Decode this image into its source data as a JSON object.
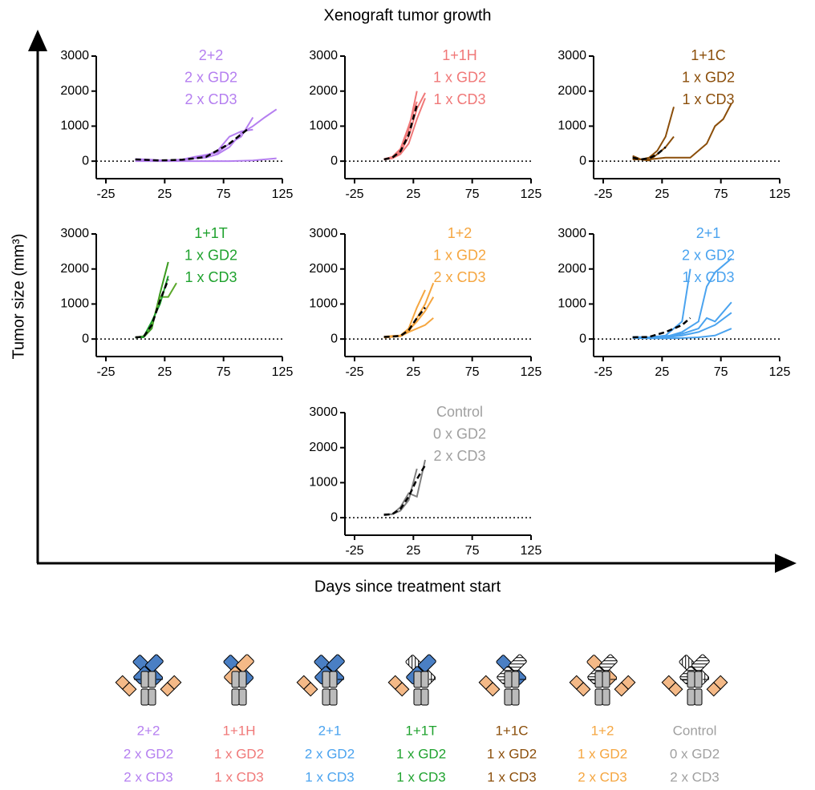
{
  "figure": {
    "title": "Xenograft tumor growth",
    "ylabel": "Tumor size (mm³)",
    "xlabel": "Days since treatment start"
  },
  "chart_data": [
    {
      "type": "line",
      "annotation": [
        "2+2",
        "2 x GD2",
        "2 x CD3"
      ],
      "color": "#b57ff0",
      "xlim": [
        -25,
        125
      ],
      "xticks": [
        -25,
        25,
        75,
        125
      ],
      "ylim": [
        -500,
        3000
      ],
      "yticks": [
        0,
        1000,
        2000,
        3000
      ],
      "zero_line": true,
      "series": [
        {
          "color": "#b57ff0",
          "x": [
            0,
            10,
            20,
            30,
            40,
            50,
            60,
            70,
            80,
            90,
            100,
            110,
            120
          ],
          "values": [
            50,
            40,
            20,
            10,
            30,
            80,
            100,
            200,
            400,
            800,
            1000,
            1250,
            1480
          ]
        },
        {
          "color": "#b57ff0",
          "x": [
            0,
            10,
            20,
            30,
            40,
            50,
            60,
            70,
            80,
            90,
            100
          ],
          "values": [
            60,
            50,
            30,
            20,
            40,
            100,
            150,
            300,
            700,
            850,
            900
          ]
        },
        {
          "color": "#b57ff0",
          "x": [
            0,
            10,
            20,
            30,
            40,
            50,
            60,
            70,
            80,
            90,
            100
          ],
          "values": [
            50,
            40,
            20,
            30,
            50,
            120,
            180,
            250,
            500,
            700,
            1250
          ]
        },
        {
          "color": "#b57ff0",
          "x": [
            0,
            20,
            40,
            60,
            80,
            100,
            120
          ],
          "values": [
            0,
            0,
            0,
            0,
            0,
            20,
            80
          ]
        },
        {
          "color": "#000000",
          "dashed": true,
          "x": [
            0,
            20,
            40,
            60,
            80,
            95
          ],
          "values": [
            50,
            20,
            40,
            120,
            500,
            900
          ]
        }
      ]
    },
    {
      "type": "line",
      "annotation": [
        "1+1H",
        "1 x GD2",
        "1 x CD3"
      ],
      "color": "#f07878",
      "xlim": [
        -25,
        125
      ],
      "xticks": [
        -25,
        25,
        75,
        125
      ],
      "ylim": [
        -500,
        3000
      ],
      "yticks": [
        0,
        1000,
        2000,
        3000
      ],
      "zero_line": true,
      "series": [
        {
          "color": "#f07878",
          "x": [
            0,
            7,
            14,
            21,
            28
          ],
          "values": [
            50,
            100,
            300,
            900,
            2000
          ]
        },
        {
          "color": "#f07878",
          "x": [
            0,
            7,
            14,
            21,
            28,
            35
          ],
          "values": [
            40,
            90,
            250,
            700,
            1500,
            1950
          ]
        },
        {
          "color": "#f07878",
          "x": [
            0,
            7,
            14,
            21,
            28,
            35
          ],
          "values": [
            50,
            80,
            200,
            500,
            1200,
            1800
          ]
        },
        {
          "color": "#f07878",
          "x": [
            0,
            7,
            14,
            21,
            28
          ],
          "values": [
            60,
            120,
            350,
            1000,
            1700
          ]
        },
        {
          "color": "#000000",
          "dashed": true,
          "x": [
            0,
            7,
            14,
            21,
            28
          ],
          "values": [
            50,
            100,
            280,
            750,
            1600
          ]
        }
      ]
    },
    {
      "type": "line",
      "annotation": [
        "1+1C",
        "1 x GD2",
        "1 x CD3"
      ],
      "color": "#8b4e0a",
      "xlim": [
        -25,
        125
      ],
      "xticks": [
        -25,
        25,
        75,
        125
      ],
      "ylim": [
        -500,
        3000
      ],
      "yticks": [
        0,
        1000,
        2000,
        3000
      ],
      "zero_line": true,
      "series": [
        {
          "color": "#8b4e0a",
          "x": [
            0,
            7,
            14,
            21,
            28,
            35
          ],
          "values": [
            150,
            50,
            100,
            300,
            700,
            1550
          ]
        },
        {
          "color": "#8b4e0a",
          "x": [
            0,
            7,
            14,
            21,
            28,
            35
          ],
          "values": [
            100,
            50,
            20,
            200,
            400,
            700
          ]
        },
        {
          "color": "#8b4e0a",
          "x": [
            0,
            14,
            28,
            42,
            49,
            56,
            63,
            70,
            77,
            84
          ],
          "values": [
            50,
            50,
            100,
            100,
            100,
            300,
            500,
            1000,
            1200,
            1650
          ]
        },
        {
          "color": "#000000",
          "dashed": true,
          "x": [
            0,
            7,
            14,
            21,
            28
          ],
          "values": [
            100,
            50,
            80,
            200,
            400
          ]
        }
      ]
    },
    {
      "type": "line",
      "annotation": [
        "1+1T",
        "1 x GD2",
        "1 x CD3"
      ],
      "color": "#1fa22e",
      "xlim": [
        -25,
        125
      ],
      "xticks": [
        -25,
        25,
        75,
        125
      ],
      "ylim": [
        -500,
        3000
      ],
      "yticks": [
        0,
        1000,
        2000,
        3000
      ],
      "zero_line": true,
      "series": [
        {
          "color": "#3a9a1e",
          "x": [
            0,
            7,
            14,
            21,
            28
          ],
          "values": [
            50,
            50,
            300,
            1300,
            2200
          ]
        },
        {
          "color": "#5aa82a",
          "x": [
            0,
            7,
            14,
            21,
            28,
            35
          ],
          "values": [
            50,
            80,
            400,
            1200,
            1200,
            1600
          ]
        },
        {
          "color": "#1fa22e",
          "x": [
            0,
            7,
            14,
            21,
            28
          ],
          "values": [
            40,
            60,
            500,
            1000,
            1800
          ]
        },
        {
          "color": "#000000",
          "dashed": true,
          "x": [
            0,
            7,
            14,
            21,
            28
          ],
          "values": [
            50,
            60,
            400,
            1100,
            1700
          ]
        }
      ]
    },
    {
      "type": "line",
      "annotation": [
        "1+2",
        "1 x GD2",
        "2 x CD3"
      ],
      "color": "#f5a640",
      "xlim": [
        -25,
        125
      ],
      "xticks": [
        -25,
        25,
        75,
        125
      ],
      "ylim": [
        -500,
        3000
      ],
      "yticks": [
        0,
        1000,
        2000,
        3000
      ],
      "zero_line": true,
      "series": [
        {
          "color": "#f5a640",
          "x": [
            0,
            7,
            14,
            21,
            28,
            35
          ],
          "values": [
            60,
            80,
            100,
            300,
            900,
            1400
          ]
        },
        {
          "color": "#f5a640",
          "x": [
            0,
            7,
            14,
            21,
            28,
            35,
            42
          ],
          "values": [
            50,
            70,
            80,
            200,
            600,
            1000,
            1600
          ]
        },
        {
          "color": "#f5a640",
          "x": [
            0,
            7,
            14,
            21,
            28,
            35,
            42
          ],
          "values": [
            70,
            90,
            100,
            250,
            500,
            800,
            1200
          ]
        },
        {
          "color": "#f5a640",
          "x": [
            0,
            7,
            14,
            21,
            28,
            35,
            42
          ],
          "values": [
            40,
            60,
            80,
            200,
            300,
            400,
            600
          ]
        },
        {
          "color": "#000000",
          "dashed": true,
          "x": [
            0,
            7,
            14,
            21,
            28,
            35
          ],
          "values": [
            60,
            70,
            90,
            250,
            600,
            900
          ]
        }
      ]
    },
    {
      "type": "line",
      "annotation": [
        "2+1",
        "2 x GD2",
        "1 x CD3"
      ],
      "color": "#4aa3ef",
      "xlim": [
        -25,
        125
      ],
      "xticks": [
        -25,
        25,
        75,
        125
      ],
      "ylim": [
        -500,
        3000
      ],
      "yticks": [
        0,
        1000,
        2000,
        3000
      ],
      "zero_line": true,
      "series": [
        {
          "color": "#4aa3ef",
          "x": [
            0,
            14,
            28,
            42,
            49
          ],
          "values": [
            50,
            50,
            100,
            500,
            2000
          ]
        },
        {
          "color": "#4aa3ef",
          "x": [
            0,
            14,
            28,
            42,
            56,
            63,
            70,
            84
          ],
          "values": [
            50,
            40,
            60,
            200,
            500,
            1500,
            1900,
            2300
          ]
        },
        {
          "color": "#4aa3ef",
          "x": [
            0,
            14,
            28,
            42,
            56,
            63,
            70,
            84
          ],
          "values": [
            60,
            50,
            80,
            150,
            300,
            600,
            500,
            1050
          ]
        },
        {
          "color": "#4aa3ef",
          "x": [
            0,
            14,
            28,
            42,
            56,
            70,
            84
          ],
          "values": [
            40,
            30,
            50,
            100,
            200,
            400,
            750
          ]
        },
        {
          "color": "#4aa3ef",
          "x": [
            0,
            14,
            28,
            42,
            56,
            70,
            84
          ],
          "values": [
            30,
            20,
            20,
            30,
            50,
            100,
            300
          ]
        },
        {
          "color": "#000000",
          "dashed": true,
          "x": [
            0,
            14,
            28,
            42,
            49
          ],
          "values": [
            50,
            60,
            200,
            400,
            600
          ]
        }
      ]
    },
    {
      "type": "line",
      "annotation": [
        "Control",
        "0 x GD2",
        "2 x CD3"
      ],
      "color": "#a0a0a0",
      "xlim": [
        -25,
        125
      ],
      "xticks": [
        -25,
        25,
        75,
        125
      ],
      "ylim": [
        -500,
        3000
      ],
      "yticks": [
        0,
        1000,
        2000,
        3000
      ],
      "zero_line": true,
      "series": [
        {
          "color": "#808080",
          "x": [
            0,
            7,
            14,
            21,
            28,
            35
          ],
          "values": [
            100,
            100,
            300,
            700,
            600,
            1650
          ]
        },
        {
          "color": "#808080",
          "x": [
            0,
            7,
            14,
            21,
            28
          ],
          "values": [
            80,
            100,
            200,
            500,
            1400
          ]
        },
        {
          "color": "#000000",
          "dashed": true,
          "x": [
            0,
            7,
            14,
            21,
            28,
            35
          ],
          "values": [
            80,
            100,
            250,
            600,
            1100,
            1500
          ]
        }
      ]
    }
  ],
  "formats": [
    {
      "lines": [
        "2+2",
        "2 x GD2",
        "2 x CD3"
      ],
      "color": "#b57ff0"
    },
    {
      "lines": [
        "1+1H",
        "1 x GD2",
        "1 x CD3"
      ],
      "color": "#f07878"
    },
    {
      "lines": [
        "2+1",
        "2 x GD2",
        "1 x CD3"
      ],
      "color": "#4aa3ef"
    },
    {
      "lines": [
        "1+1T",
        "1 x GD2",
        "1 x CD3"
      ],
      "color": "#1fa22e"
    },
    {
      "lines": [
        "1+1C",
        "1 x GD2",
        "1 x CD3"
      ],
      "color": "#8b4e0a"
    },
    {
      "lines": [
        "1+2",
        "1 x GD2",
        "2 x CD3"
      ],
      "color": "#f5a640"
    },
    {
      "lines": [
        "Control",
        "0 x GD2",
        "2 x CD3"
      ],
      "color": "#a0a0a0"
    }
  ]
}
